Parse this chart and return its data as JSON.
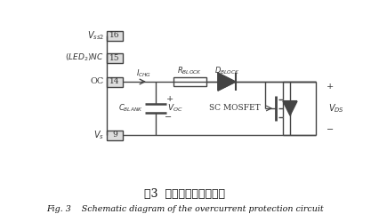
{
  "fig_width": 4.17,
  "fig_height": 2.5,
  "dpi": 100,
  "bg_color": "#ffffff",
  "line_color": "#444444",
  "text_color": "#333333",
  "title_cn": "图3  过流保护电路原理图",
  "title_en": "Fig. 3    Schematic diagram of the overcurrent protection circuit",
  "labels": {
    "vss2": "$V_{ss2}$",
    "led_nc": "$(LED_2)NC$",
    "oc": "OC",
    "vs": "$V_s$",
    "pin16": "16",
    "pin15": "15",
    "pin14": "14",
    "pin9": "9",
    "ichg": "$I_{CHG}$",
    "rblock": "$R_{BLOCK}$",
    "dblock": "$D_{BLOCK}$",
    "cblank": "$C_{BLANK}$",
    "voc": "$V_{OC}$",
    "sc_mosfet": "SC MOSFET",
    "vds": "$V_{DS}$",
    "plus1": "+",
    "minus1": "−",
    "plus2": "+",
    "minus2": "−"
  }
}
